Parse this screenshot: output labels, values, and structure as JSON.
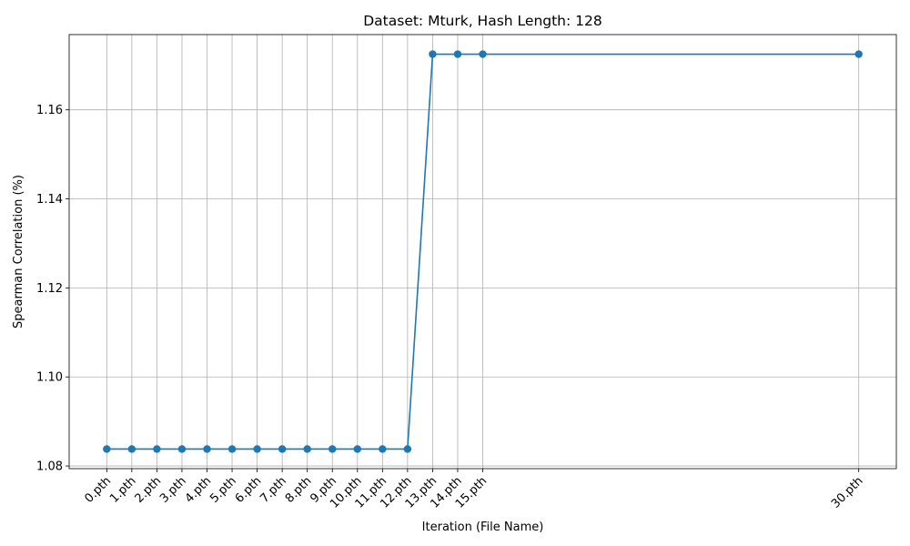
{
  "chart_data": {
    "type": "line",
    "title": "Dataset: Mturk, Hash Length: 128",
    "xlabel": "Iteration (File Name)",
    "ylabel": "Spearman Correlation (%)",
    "x": [
      0,
      1,
      2,
      3,
      4,
      5,
      6,
      7,
      8,
      9,
      10,
      11,
      12,
      13,
      14,
      15,
      30
    ],
    "x_tick_labels": [
      "0.pth",
      "1.pth",
      "2.pth",
      "3.pth",
      "4.pth",
      "5.pth",
      "6.pth",
      "7.pth",
      "8.pth",
      "9.pth",
      "10.pth",
      "11.pth",
      "12.pth",
      "13.pth",
      "14.pth",
      "15.pth",
      "30.pth"
    ],
    "series": [
      {
        "values": [
          1.0838,
          1.0838,
          1.0838,
          1.0838,
          1.0838,
          1.0838,
          1.0838,
          1.0838,
          1.0838,
          1.0838,
          1.0838,
          1.0838,
          1.0838,
          1.1725,
          1.1725,
          1.1725,
          1.1725
        ],
        "color": "#1f77b4",
        "marker": "circle"
      }
    ],
    "xlim": [
      -1.5,
      31.5
    ],
    "ylim": [
      1.0794,
      1.1769
    ],
    "y_ticks": [
      1.08,
      1.1,
      1.12,
      1.14,
      1.16
    ],
    "y_tick_labels": [
      "1.08",
      "1.10",
      "1.12",
      "1.14",
      "1.16"
    ],
    "grid": true,
    "legend": "none"
  }
}
